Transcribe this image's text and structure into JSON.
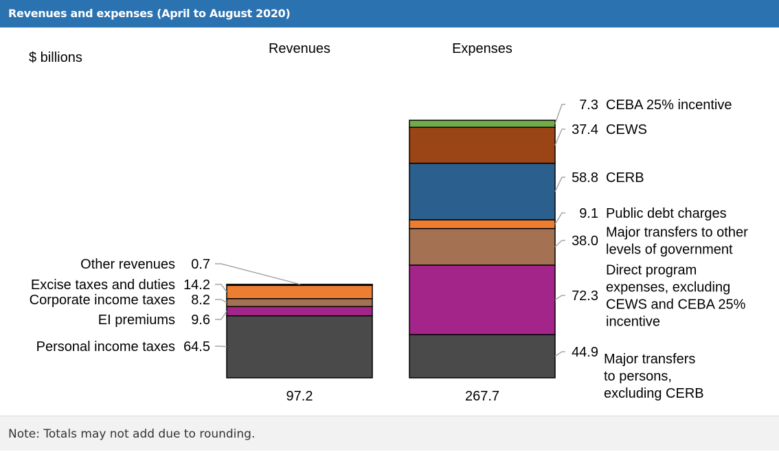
{
  "title": "Revenues and expenses (April to August 2020)",
  "note": "Note: Totals may not add due to rounding.",
  "chart_data": {
    "type": "bar",
    "stacked": true,
    "ylabel": "$ billions",
    "categories": [
      "Revenues",
      "Expenses"
    ],
    "totals": [
      "97.2",
      "267.7"
    ],
    "stacks": [
      {
        "category": "Revenues",
        "segments": [
          {
            "label": "Personal income taxes",
            "value": 64.5,
            "display": "64.5",
            "color": "#4a4a4a"
          },
          {
            "label": "EI premiums",
            "value": 9.6,
            "display": "9.6",
            "color": "#a4258a"
          },
          {
            "label": "Corporate income taxes",
            "value": 8.2,
            "display": "8.2",
            "color": "#a47252"
          },
          {
            "label": "Excise taxes and duties",
            "value": 14.2,
            "display": "14.2",
            "color": "#ed7d31"
          },
          {
            "label": "Other revenues",
            "value": 0.7,
            "display": "0.7",
            "color": "#2b5f8d"
          }
        ]
      },
      {
        "category": "Expenses",
        "segments": [
          {
            "label": "Major transfers to persons, excluding CERB",
            "lines": [
              "Major transfers",
              "to persons,",
              "excluding CERB"
            ],
            "value": 44.9,
            "display": "44.9",
            "color": "#4a4a4a"
          },
          {
            "label": "Direct program expenses, excluding CEWS and CEBA 25% incentive",
            "lines": [
              "Direct program",
              "expenses, excluding",
              "CEWS and CEBA 25%",
              "incentive"
            ],
            "value": 72.3,
            "display": "72.3",
            "color": "#a4258a"
          },
          {
            "label": "Major transfers to other levels of government",
            "lines": [
              "Major transfers to other",
              "levels of government"
            ],
            "value": 38.0,
            "display": "38.0",
            "color": "#a47252"
          },
          {
            "label": "Public debt charges",
            "lines": [
              "Public debt charges"
            ],
            "value": 9.1,
            "display": "9.1",
            "color": "#ed7d31"
          },
          {
            "label": "CERB",
            "lines": [
              "CERB"
            ],
            "value": 58.8,
            "display": "58.8",
            "color": "#2b5f8d"
          },
          {
            "label": "CEWS",
            "lines": [
              "CEWS"
            ],
            "value": 37.4,
            "display": "37.4",
            "color": "#9b4517"
          },
          {
            "label": "CEBA 25% incentive",
            "lines": [
              "CEBA 25% incentive"
            ],
            "value": 7.3,
            "display": "7.3",
            "color": "#70ad47"
          }
        ]
      }
    ]
  }
}
